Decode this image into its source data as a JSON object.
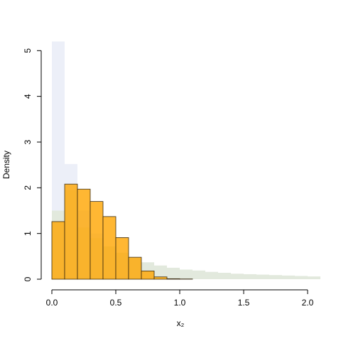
{
  "chart_data": {
    "type": "histogram",
    "x_label": "x₂",
    "y_label": "Density",
    "xlim": [
      0,
      2.1
    ],
    "ylim": [
      0,
      5.16
    ],
    "xticks": [
      {
        "value": 0,
        "label": "0.0"
      },
      0.5,
      {
        "value": 1,
        "label": "1.0"
      },
      1.5,
      {
        "value": 2,
        "label": "2.0"
      }
    ],
    "yticks": [
      0,
      1,
      2,
      3,
      4,
      5
    ],
    "series": [
      {
        "color": "#eceff8",
        "border": false,
        "bins": [
          0,
          0.1,
          0.2,
          0.3,
          0.4,
          0.5,
          0.6,
          0.7,
          0.8,
          0.9,
          1.0
        ],
        "values": [
          5.2,
          2.52,
          1.5,
          1.0,
          0.7,
          0.5,
          0.35,
          0.2,
          0.1,
          0.05
        ]
      },
      {
        "color": "#e2e9dd",
        "border": false,
        "bins": [
          0,
          0.1,
          0.2,
          0.3,
          0.4,
          0.5,
          0.6,
          0.7,
          0.8,
          0.9,
          1.0,
          1.1,
          1.2,
          1.3,
          1.4,
          1.5,
          1.6,
          1.7,
          1.8,
          1.9,
          2.0,
          2.1
        ],
        "values": [
          1.5,
          1.95,
          1.13,
          0.9,
          0.72,
          0.58,
          0.47,
          0.37,
          0.3,
          0.25,
          0.21,
          0.19,
          0.16,
          0.14,
          0.12,
          0.11,
          0.1,
          0.09,
          0.08,
          0.07,
          0.06
        ]
      },
      {
        "color": "#ffa500",
        "border": true,
        "bins": [
          0,
          0.1,
          0.2,
          0.3,
          0.4,
          0.5,
          0.6,
          0.7,
          0.8,
          0.9,
          1.0,
          1.1
        ],
        "values": [
          1.26,
          2.08,
          1.97,
          1.7,
          1.37,
          0.91,
          0.48,
          0.18,
          0.05,
          0.01,
          0.005
        ]
      }
    ]
  }
}
